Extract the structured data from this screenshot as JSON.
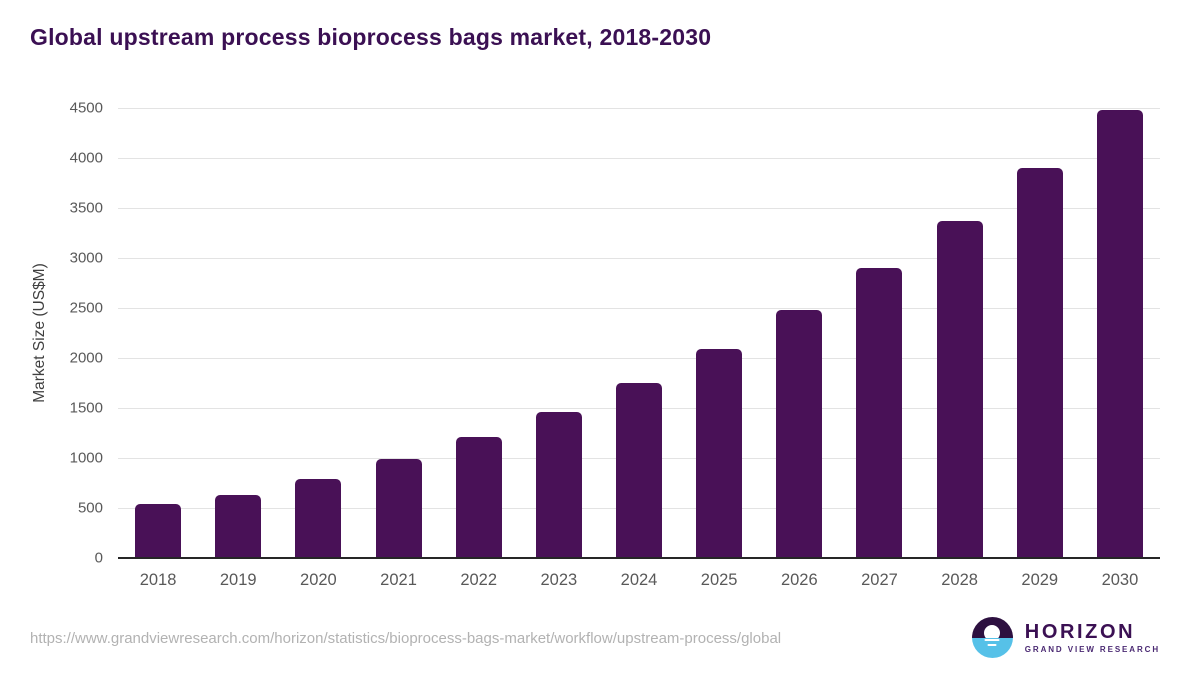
{
  "title": "Global upstream process bioprocess bags market, 2018-2030",
  "chart_data": {
    "type": "bar",
    "title": "Global upstream process bioprocess bags market, 2018-2030",
    "categories": [
      "2018",
      "2019",
      "2020",
      "2021",
      "2022",
      "2023",
      "2024",
      "2025",
      "2026",
      "2027",
      "2028",
      "2029",
      "2030"
    ],
    "values": [
      540,
      630,
      790,
      990,
      1210,
      1460,
      1750,
      2090,
      2480,
      2900,
      3370,
      3900,
      4480
    ],
    "xlabel": "",
    "ylabel": "Market Size (US$M)",
    "ylim": [
      0,
      4500
    ],
    "ytick_step": 500,
    "grid": true,
    "legend": false,
    "bar_color": "#491157"
  },
  "footer": {
    "source_url": "https://www.grandviewresearch.com/horizon/statistics/bioprocess-bags-market/workflow/upstream-process/global",
    "logo": {
      "title": "HORIZON",
      "subtitle": "GRAND VIEW RESEARCH"
    }
  },
  "colors": {
    "bar": "#491157",
    "title_text": "#3b1053",
    "axis_text": "#595959",
    "gridline": "#e3e3e3",
    "axis_line": "#262626",
    "url_text": "#b2b2b2",
    "logo_purple": "#2d1040",
    "logo_blue": "#56c1e8"
  }
}
